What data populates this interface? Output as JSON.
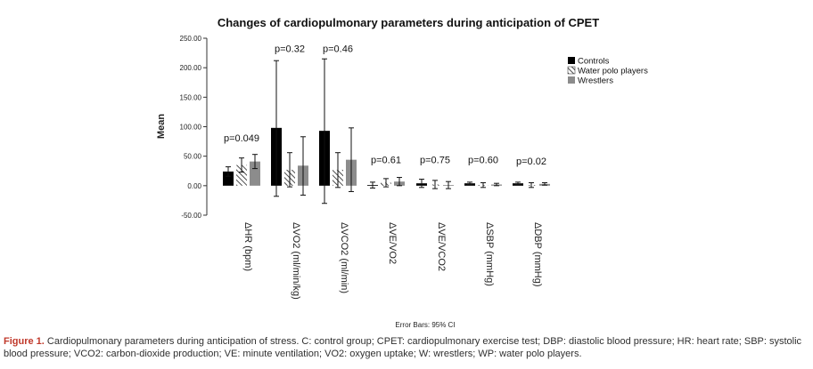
{
  "chart_data": {
    "type": "bar",
    "title": "Changes of cardiopulmonary parameters during anticipation of CPET",
    "ylabel": "Mean",
    "xlabel": "",
    "ylim": [
      -50,
      250
    ],
    "yticks": [
      "250.00",
      "200.00",
      "150.00",
      "100.00",
      "50.00",
      "0.00",
      "-50.00"
    ],
    "ytick_values": [
      250,
      200,
      150,
      100,
      50,
      0,
      -50
    ],
    "categories": [
      "ΔHR (bpm)",
      "ΔVO2 (ml/min/kg)",
      "ΔVCO2 (ml/min)",
      "ΔVE/VO2",
      "ΔVE/VCO2",
      "ΔSBP (mmHg)",
      "ΔDBP (mmHg)"
    ],
    "series": [
      {
        "name": "Controls",
        "color": "#000000",
        "pattern": "solid",
        "values": [
          24,
          98,
          93,
          1,
          4,
          4,
          4
        ],
        "ci_low": [
          16,
          -18,
          -30,
          -4,
          -3,
          2,
          2
        ],
        "ci_high": [
          32,
          212,
          215,
          6,
          11,
          6,
          6
        ]
      },
      {
        "name": "Water polo players",
        "color": "#555555",
        "pattern": "hatch",
        "values": [
          35,
          27,
          27,
          5,
          2,
          1,
          1
        ],
        "ci_low": [
          23,
          -2,
          -3,
          -2,
          -5,
          -3,
          -3
        ],
        "ci_high": [
          47,
          56,
          56,
          12,
          9,
          5,
          5
        ]
      },
      {
        "name": "Wrestlers",
        "color": "#8c8c8c",
        "pattern": "solid",
        "values": [
          41,
          34,
          44,
          7,
          1,
          2,
          3
        ],
        "ci_low": [
          29,
          -16,
          -10,
          0,
          -5,
          0,
          1
        ],
        "ci_high": [
          53,
          83,
          98,
          14,
          7,
          4,
          5
        ]
      }
    ],
    "pvalues": [
      "p=0.049",
      "p=0.32",
      "p=0.46",
      "p=0.61",
      "p=0.75",
      "p=0.60",
      "p=0.02"
    ],
    "pvalue_anchor_values": [
      75,
      227,
      227,
      38,
      38,
      38,
      36
    ],
    "legend_position": "top-right",
    "note": "Error Bars: 95% CI"
  },
  "caption": {
    "label": "Figure 1.",
    "text": "Cardiopulmonary parameters during anticipation of stress. C: control group; CPET: cardiopulmonary exercise test; DBP: diastolic blood pressure; HR: heart rate; SBP: systolic blood pressure; VCO2: carbon-dioxide production; VE: minute ventilation; VO2: oxygen uptake; W: wrestlers; WP: water polo players."
  }
}
